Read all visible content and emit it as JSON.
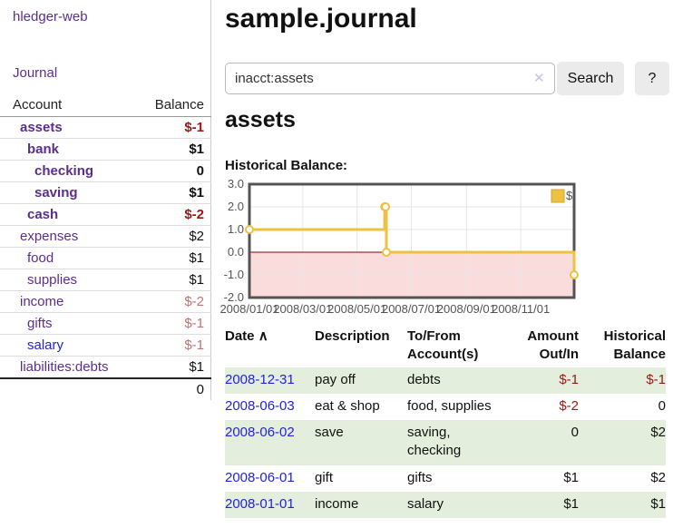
{
  "app_title": "hledger-web",
  "nav": {
    "journal": "Journal"
  },
  "sidebar": {
    "headers": {
      "account": "Account",
      "balance": "Balance"
    },
    "rows": [
      {
        "name": "assets",
        "balance": "$-1"
      },
      {
        "name": "bank",
        "balance": "$1"
      },
      {
        "name": "checking",
        "balance": "0"
      },
      {
        "name": "saving",
        "balance": "$1"
      },
      {
        "name": "cash",
        "balance": "$-2"
      },
      {
        "name": "expenses",
        "balance": "$2"
      },
      {
        "name": "food",
        "balance": "$1"
      },
      {
        "name": "supplies",
        "balance": "$1"
      },
      {
        "name": "income",
        "balance": "$-2"
      },
      {
        "name": "gifts",
        "balance": "$-1"
      },
      {
        "name": "salary",
        "balance": "$-1"
      },
      {
        "name": "liabilities:debts",
        "balance": "$1"
      }
    ],
    "total": "0"
  },
  "header": {
    "title": "sample.journal"
  },
  "search": {
    "value": "inacct:assets",
    "clear_icon": "✕",
    "search_button": "Search",
    "help_button": "?"
  },
  "content": {
    "account_heading": "assets",
    "chart_title": "Historical Balance:"
  },
  "chart_data": {
    "type": "line",
    "step": true,
    "title": "Historical Balance",
    "series": [
      {
        "name": "$",
        "color": "#edc240",
        "points": [
          {
            "x": "2008-01-01",
            "y": 1
          },
          {
            "x": "2008-06-01",
            "y": 2
          },
          {
            "x": "2008-06-02",
            "y": 2
          },
          {
            "x": "2008-06-03",
            "y": 0
          },
          {
            "x": "2008-12-31",
            "y": -1
          }
        ]
      }
    ],
    "x_range": [
      "2008-01-01",
      "2008-12-31"
    ],
    "ylim": [
      -2,
      3
    ],
    "x_ticks": [
      {
        "x": "2008-01-01",
        "label": "2008/01/01"
      },
      {
        "x": "2008-03-01",
        "label": "2008/03/01"
      },
      {
        "x": "2008-05-01",
        "label": "2008/05/01"
      },
      {
        "x": "2008-07-01",
        "label": "2008/07/01"
      },
      {
        "x": "2008-09-01",
        "label": "2008/09/01"
      },
      {
        "x": "2008-11-01",
        "label": "2008/11/01"
      }
    ],
    "y_ticks": [
      {
        "v": 3,
        "label": "3.0"
      },
      {
        "v": 2,
        "label": "2.0"
      },
      {
        "v": 1,
        "label": "1.0"
      },
      {
        "v": 0,
        "label": "0.0"
      },
      {
        "v": -1,
        "label": "-1.0"
      },
      {
        "v": -2,
        "label": "-2.0"
      }
    ],
    "legend": {
      "label": "$",
      "position": "top-right"
    },
    "grid": true,
    "negative_region": true,
    "colors": {
      "negative_fill": "#fbdcdc",
      "zero_line": "#8b0000",
      "border": "#545454",
      "gridline": "#e6e6e6"
    }
  },
  "register": {
    "headers": {
      "date": "Date",
      "sort_icon": "∧",
      "description": "Description",
      "accounts": "To/From Account(s)",
      "amount": "Amount Out/In",
      "balance": "Historical Balance"
    },
    "rows": [
      {
        "date": "2008-12-31",
        "description": "pay off",
        "accounts": "debts",
        "amount": "$-1",
        "balance": "$-1"
      },
      {
        "date": "2008-06-03",
        "description": "eat & shop",
        "accounts": "food, supplies",
        "amount": "$-2",
        "balance": "0"
      },
      {
        "date": "2008-06-02",
        "description": "save",
        "accounts": "saving, checking",
        "amount": "0",
        "balance": "$2"
      },
      {
        "date": "2008-06-01",
        "description": "gift",
        "accounts": "gifts",
        "amount": "$1",
        "balance": "$2"
      },
      {
        "date": "2008-01-01",
        "description": "income",
        "accounts": "salary",
        "amount": "$1",
        "balance": "$1"
      }
    ]
  }
}
